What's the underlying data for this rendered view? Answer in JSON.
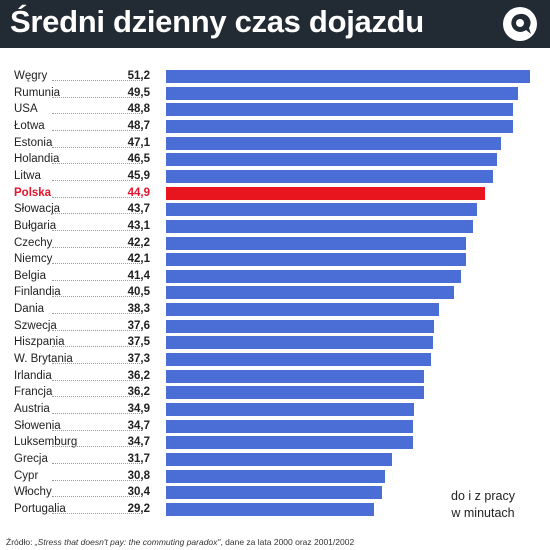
{
  "header": {
    "title": "Średni dzienny czas dojazdu",
    "logo_icon": "quote-bubble-icon",
    "background_color": "#222b33"
  },
  "chart_data": {
    "type": "bar",
    "orientation": "horizontal",
    "title": "Średni dzienny czas dojazdu",
    "unit_note": [
      "do i z pracy",
      "w minutach"
    ],
    "categories": [
      "Węgry",
      "Rumunia",
      "USA",
      "Łotwa",
      "Estonia",
      "Holandia",
      "Litwa",
      "Polska",
      "Słowacja",
      "Bułgaria",
      "Czechy",
      "Niemcy",
      "Belgia",
      "Finlandia",
      "Dania",
      "Szwecja",
      "Hiszpania",
      "W. Brytania",
      "Irlandia",
      "Francja",
      "Austria",
      "Słowenia",
      "Luksemburg",
      "Grecja",
      "Cypr",
      "Włochy",
      "Portugalia"
    ],
    "values": [
      51.2,
      49.5,
      48.8,
      48.7,
      47.1,
      46.5,
      45.9,
      44.9,
      43.7,
      43.1,
      42.2,
      42.1,
      41.4,
      40.5,
      38.3,
      37.6,
      37.5,
      37.3,
      36.2,
      36.2,
      34.9,
      34.7,
      34.7,
      31.7,
      30.8,
      30.4,
      29.2
    ],
    "value_labels": [
      "51,2",
      "49,5",
      "48,8",
      "48,7",
      "47,1",
      "46,5",
      "45,9",
      "44,9",
      "43,7",
      "43,1",
      "42,2",
      "42,1",
      "41,4",
      "40,5",
      "38,3",
      "37,6",
      "37,5",
      "37,3",
      "36,2",
      "36,2",
      "34,9",
      "34,7",
      "34,7",
      "31,7",
      "30,8",
      "30,4",
      "29,2"
    ],
    "highlight": "Polska",
    "colors": {
      "bar": "#4a6ed6",
      "highlight": "#e8141e",
      "highlight_text": "#e3142b"
    },
    "xlim": [
      0,
      52
    ],
    "grid": false
  },
  "footer": {
    "source_prefix": "Źródło: ",
    "source_title": "„Stress that doesn't pay: the commuting paradox\"",
    "source_suffix": ", dane za lata 2000 oraz 2001/2002"
  }
}
